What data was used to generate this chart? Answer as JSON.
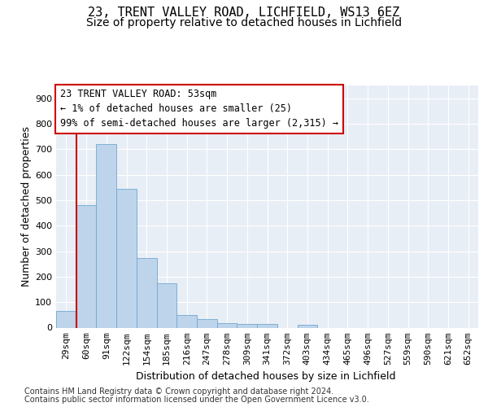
{
  "title_line1": "23, TRENT VALLEY ROAD, LICHFIELD, WS13 6EZ",
  "title_line2": "Size of property relative to detached houses in Lichfield",
  "xlabel": "Distribution of detached houses by size in Lichfield",
  "ylabel": "Number of detached properties",
  "categories": [
    "29sqm",
    "60sqm",
    "91sqm",
    "122sqm",
    "154sqm",
    "185sqm",
    "216sqm",
    "247sqm",
    "278sqm",
    "309sqm",
    "341sqm",
    "372sqm",
    "403sqm",
    "434sqm",
    "465sqm",
    "496sqm",
    "527sqm",
    "559sqm",
    "590sqm",
    "621sqm",
    "652sqm"
  ],
  "values": [
    65,
    480,
    720,
    545,
    272,
    173,
    48,
    35,
    18,
    15,
    15,
    0,
    10,
    0,
    0,
    0,
    0,
    0,
    0,
    0,
    0
  ],
  "bar_color": "#bed4ea",
  "bar_edgecolor": "#6fa8d0",
  "annotation_line1": "23 TRENT VALLEY ROAD: 53sqm",
  "annotation_line2": "← 1% of detached houses are smaller (25)",
  "annotation_line3": "99% of semi-detached houses are larger (2,315) →",
  "annotation_box_edgecolor": "#cc0000",
  "vline_color": "#cc0000",
  "ylim": [
    0,
    950
  ],
  "yticks": [
    0,
    100,
    200,
    300,
    400,
    500,
    600,
    700,
    800,
    900
  ],
  "background_color": "#e8eef6",
  "footer_line1": "Contains HM Land Registry data © Crown copyright and database right 2024.",
  "footer_line2": "Contains public sector information licensed under the Open Government Licence v3.0.",
  "title_fontsize": 11,
  "subtitle_fontsize": 10,
  "xlabel_fontsize": 9,
  "ylabel_fontsize": 9,
  "tick_fontsize": 8,
  "annotation_fontsize": 8.5,
  "footer_fontsize": 7
}
